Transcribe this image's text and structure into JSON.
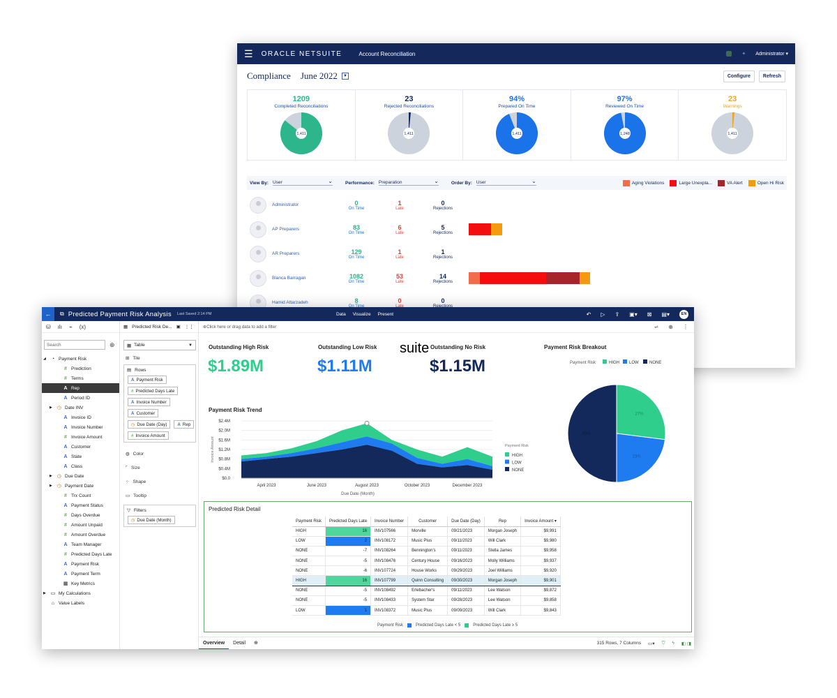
{
  "netsuite": {
    "brand": "ORACLE NETSUITE",
    "app_title": "Account Reconciliation",
    "user_menu": "Administrator ▾",
    "page_title": "Compliance",
    "period": "June 2022",
    "configure_label": "Configure",
    "refresh_label": "Refresh",
    "kpis": [
      {
        "value": "1209",
        "label": "Completed Reconciliations",
        "center": "1,411",
        "fraction": 0.857,
        "color": "#2db58c"
      },
      {
        "value": "23",
        "label": "Rejected Reconciliations",
        "center": "1,411",
        "fraction": 0.016,
        "color": "#14285c"
      },
      {
        "value": "94%",
        "label": "Prepared On Time",
        "center": "1,411",
        "fraction": 0.94,
        "color": "#1a73e8"
      },
      {
        "value": "97%",
        "label": "Reviewed On Time",
        "center": "1,248",
        "fraction": 0.97,
        "color": "#1a73e8"
      },
      {
        "value": "23",
        "label": "Warnings",
        "center": "1,411",
        "fraction": 0.016,
        "color": "#f0a419"
      }
    ],
    "filters": {
      "view_by_label": "View By:",
      "view_by_value": "User",
      "performance_label": "Performance:",
      "performance_value": "Preparation",
      "order_by_label": "Order By:",
      "order_by_value": "User"
    },
    "legend": [
      {
        "label": "Aging Violations",
        "color": "#f26b4b"
      },
      {
        "label": "Large Unexpla...",
        "color": "#f20e0e"
      },
      {
        "label": "VA Alert",
        "color": "#a8242c"
      },
      {
        "label": "Open Hi Risk",
        "color": "#f59a0e"
      }
    ],
    "users": [
      {
        "name": "Administrator",
        "on_time": "0",
        "late": "1",
        "rejections": "0",
        "bars": []
      },
      {
        "name": "AP Preparers",
        "on_time": "83",
        "late": "6",
        "rejections": "5",
        "bars": [
          {
            "color": "#f20e0e",
            "w": 32
          },
          {
            "color": "#f59a0e",
            "w": 16
          }
        ]
      },
      {
        "name": "AR Preparers",
        "on_time": "129",
        "late": "1",
        "rejections": "1",
        "bars": []
      },
      {
        "name": "Blanca Barragan",
        "on_time": "1082",
        "late": "53",
        "rejections": "14",
        "bars": [
          {
            "color": "#f26b4b",
            "w": 16
          },
          {
            "color": "#f20e0e",
            "w": 95
          },
          {
            "color": "#a8242c",
            "w": 48
          },
          {
            "color": "#f59a0e",
            "w": 15
          }
        ]
      },
      {
        "name": "Hamid Attarzadeh",
        "on_time": "8",
        "late": "0",
        "rejections": "0",
        "bars": []
      }
    ],
    "on_time_label": "On Time",
    "late_label": "Late",
    "rejections_label": "Rejections"
  },
  "analytics": {
    "title": "Predicted Payment Risk Analysis",
    "saved": "Last Saved 2:14 PM",
    "nav": [
      "Data",
      "Visualize",
      "Present"
    ],
    "user_initials": "EN",
    "search_placeholder": "Search",
    "tree": [
      {
        "label": "Payment Risk",
        "ic": "◔",
        "cls": "",
        "indent": 0,
        "caret": "◢"
      },
      {
        "label": "Prediction",
        "ic": "#",
        "cls": "h",
        "indent": 2,
        "caret": ""
      },
      {
        "label": "Terms",
        "ic": "#",
        "cls": "h",
        "indent": 2,
        "caret": ""
      },
      {
        "label": "Rep",
        "ic": "A",
        "cls": "a",
        "indent": 2,
        "caret": "",
        "sel": true
      },
      {
        "label": "Period ID",
        "ic": "A",
        "cls": "a",
        "indent": 2,
        "caret": ""
      },
      {
        "label": "Date INV",
        "ic": "◷",
        "cls": "c",
        "indent": 1,
        "caret": "▶"
      },
      {
        "label": "Invoice ID",
        "ic": "A",
        "cls": "a",
        "indent": 2,
        "caret": ""
      },
      {
        "label": "Invoice Number",
        "ic": "A",
        "cls": "a",
        "indent": 2,
        "caret": ""
      },
      {
        "label": "Invoice Amount",
        "ic": "#",
        "cls": "h",
        "indent": 2,
        "caret": ""
      },
      {
        "label": "Customer",
        "ic": "A",
        "cls": "a",
        "indent": 2,
        "caret": ""
      },
      {
        "label": "State",
        "ic": "A",
        "cls": "a",
        "indent": 2,
        "caret": ""
      },
      {
        "label": "Class",
        "ic": "A",
        "cls": "a",
        "indent": 2,
        "caret": ""
      },
      {
        "label": "Due Date",
        "ic": "◷",
        "cls": "c",
        "indent": 1,
        "caret": "▶"
      },
      {
        "label": "Payment Date",
        "ic": "◷",
        "cls": "c",
        "indent": 1,
        "caret": "▶"
      },
      {
        "label": "Trx Count",
        "ic": "#",
        "cls": "h",
        "indent": 2,
        "caret": ""
      },
      {
        "label": "Payment Status",
        "ic": "A",
        "cls": "a",
        "indent": 2,
        "caret": ""
      },
      {
        "label": "Days Overdue",
        "ic": "#",
        "cls": "h",
        "indent": 2,
        "caret": ""
      },
      {
        "label": "Amount Unpaid",
        "ic": "#",
        "cls": "h",
        "indent": 2,
        "caret": ""
      },
      {
        "label": "Amount Overdue",
        "ic": "#",
        "cls": "h",
        "indent": 2,
        "caret": ""
      },
      {
        "label": "Team Manager",
        "ic": "A",
        "cls": "a",
        "indent": 2,
        "caret": ""
      },
      {
        "label": "Predicted Days Late",
        "ic": "#",
        "cls": "h",
        "indent": 2,
        "caret": ""
      },
      {
        "label": "Payment Risk",
        "ic": "A",
        "cls": "a",
        "indent": 2,
        "caret": ""
      },
      {
        "label": "Payment Term",
        "ic": "A",
        "cls": "a",
        "indent": 2,
        "caret": ""
      },
      {
        "label": "Key Metrics",
        "ic": "▦",
        "cls": "",
        "indent": 2,
        "caret": ""
      },
      {
        "label": "My Calculations",
        "ic": "▭",
        "cls": "",
        "indent": 0,
        "caret": "▶"
      },
      {
        "label": "Value Labels",
        "ic": "⌂",
        "cls": "",
        "indent": 0,
        "caret": ""
      }
    ],
    "grammar": {
      "canvas_name": "Predicted Risk De...",
      "viz_type": "Table",
      "tile": "Tile",
      "rows_label": "Rows",
      "rows": [
        {
          "label": "Payment Risk",
          "ic": "A",
          "cls": "a"
        },
        {
          "label": "Predicted Days Late",
          "ic": "#",
          "cls": "h"
        },
        {
          "label": "Invoice Number",
          "ic": "A",
          "cls": "a"
        },
        {
          "label": "Customer",
          "ic": "A",
          "cls": "a"
        },
        {
          "label": "Due Date (Day)",
          "ic": "◷",
          "cls": "c"
        },
        {
          "label": "Rep",
          "ic": "A",
          "cls": "a"
        },
        {
          "label": "Invoice Amount",
          "ic": "#",
          "cls": "h"
        }
      ],
      "color": "Color",
      "size": "Size",
      "shape": "Shape",
      "tooltip": "Tooltip",
      "filters_label": "Filters",
      "filter_chip": "Due Date (Month)"
    },
    "filter_bar": "Click here or drag data to add a filter",
    "kpis": [
      {
        "title": "Outstanding High Risk",
        "value": "$1.89M",
        "color": "#2fce8d"
      },
      {
        "title": "Outstanding Low Risk",
        "value": "$1.11M",
        "color": "#1e7cf0"
      },
      {
        "title": "Outstanding No Risk",
        "value": "$1.15M",
        "color": "#13285b"
      }
    ],
    "overlay_text": "suite",
    "trend_title": "Payment Risk Trend",
    "breakout_title": "Payment Risk Breakout",
    "detail_title": "Predicted Risk Detail",
    "table": {
      "headers": [
        "Payment Risk",
        "Predicted Days Late",
        "Invoice Number",
        "Customer",
        "Due Date (Day)",
        "Rep",
        "Invoice Amount ▾"
      ],
      "rows": [
        [
          "HIGH",
          "16",
          "INV107566",
          "Morville",
          "09/21/2023",
          "Morgan Joseph",
          "$9,991"
        ],
        [
          "LOW",
          "2",
          "INV108172",
          "Music Plus",
          "09/11/2023",
          "Will Clark",
          "$9,980"
        ],
        [
          "NONE",
          "-7",
          "INV108264",
          "Bennington's",
          "09/11/2023",
          "Stella James",
          "$9,958"
        ],
        [
          "NONE",
          "-5",
          "INV108476",
          "Century House",
          "09/16/2023",
          "Molly Williams",
          "$9,937"
        ],
        [
          "NONE",
          "-6",
          "INV107724",
          "House Works",
          "09/29/2023",
          "Joel Williams",
          "$9,920"
        ],
        [
          "HIGH",
          "16",
          "INV107799",
          "Quinn Consulting",
          "09/30/2023",
          "Morgan Joseph",
          "$9,901"
        ],
        [
          "NONE",
          "-5",
          "INV108492",
          "Erlebacher's",
          "09/11/2023",
          "Lee Watson",
          "$9,872"
        ],
        [
          "NONE",
          "-5",
          "INV108433",
          "System Star",
          "09/28/2023",
          "Lee Watson",
          "$9,858"
        ],
        [
          "LOW",
          "1",
          "INV108372",
          "Music Plus",
          "09/09/2023",
          "Will Clark",
          "$9,843"
        ]
      ],
      "highlight_row": 5,
      "legend_title": "Payment Risk",
      "legend": [
        {
          "label": "Predicted Days Late < 5",
          "color": "#1e7cf0"
        },
        {
          "label": "Predicted Days Late ≥ 5",
          "color": "#2fce8d"
        }
      ]
    },
    "tabs": [
      "Overview",
      "Detail"
    ],
    "status": "315 Rows, 7 Columns"
  },
  "chart_data": [
    {
      "type": "area",
      "title": "Payment Risk Trend",
      "xlabel": "Due Date (Month)",
      "ylabel": "Invoice Amount",
      "x": [
        "2023-03",
        "2023-04",
        "2023-05",
        "2023-06",
        "2023-07",
        "2023-08",
        "2023-09",
        "2023-10",
        "2023-11",
        "2023-12",
        "2024-01"
      ],
      "x_tick_labels": [
        "April 2023",
        "June 2023",
        "August 2023",
        "October 2023",
        "December 2023"
      ],
      "y_tick_labels": [
        "$0.0",
        "$0.4M",
        "$0.8M",
        "$1.2M",
        "$1.6M",
        "$2.0M",
        "$2.4M"
      ],
      "ylim": [
        0,
        2.4
      ],
      "stacked": true,
      "legend_title": "Payment Risk",
      "series": [
        {
          "name": "NONE",
          "color": "#13285b",
          "values": [
            0.7,
            0.8,
            0.9,
            1.05,
            1.2,
            1.4,
            1.15,
            0.6,
            0.45,
            0.55,
            0.35
          ]
        },
        {
          "name": "LOW",
          "color": "#1e7cf0",
          "values": [
            0.1,
            0.1,
            0.15,
            0.2,
            0.3,
            0.35,
            0.3,
            0.25,
            0.15,
            0.25,
            0.15
          ]
        },
        {
          "name": "HIGH",
          "color": "#2fce8d",
          "values": [
            0.15,
            0.15,
            0.2,
            0.3,
            0.5,
            0.55,
            0.15,
            0.35,
            0.3,
            0.5,
            0.4
          ]
        }
      ]
    },
    {
      "type": "pie",
      "title": "Payment Risk Breakout",
      "legend_title": "Payment Risk",
      "categories": [
        "HIGH",
        "LOW",
        "NONE"
      ],
      "values": [
        27,
        23,
        50
      ],
      "colors": [
        "#2fce8d",
        "#1e7cf0",
        "#13285b"
      ],
      "labels": [
        "27%",
        "23%",
        "50%"
      ]
    }
  ]
}
